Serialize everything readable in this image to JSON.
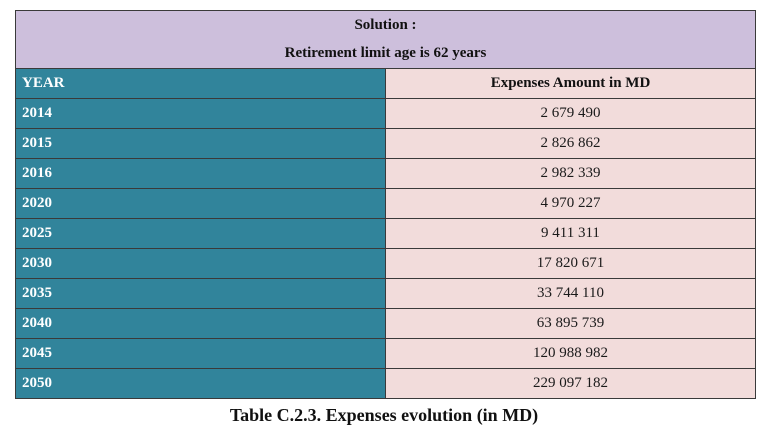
{
  "header": {
    "line1": "Solution :",
    "line2": "Retirement limit age is 62 years"
  },
  "columns": {
    "year": "YEAR",
    "amount": "Expenses Amount in MD"
  },
  "rows": [
    {
      "year": "2014",
      "amount": "2 679 490"
    },
    {
      "year": "2015",
      "amount": "2 826 862"
    },
    {
      "year": "2016",
      "amount": "2 982 339"
    },
    {
      "year": "2020",
      "amount": "4 970 227"
    },
    {
      "year": "2025",
      "amount": "9 411 311"
    },
    {
      "year": "2030",
      "amount": "17 820 671"
    },
    {
      "year": "2035",
      "amount": "33 744 110"
    },
    {
      "year": "2040",
      "amount": "63 895 739"
    },
    {
      "year": "2045",
      "amount": "120 988 982"
    },
    {
      "year": "2050",
      "amount": "229 097 182"
    }
  ],
  "caption": "Table C.2.3. Expenses evolution (in MD)",
  "colors": {
    "header_bg": "#cdbfdc",
    "year_bg": "#31849b",
    "amount_bg": "#f2dcdb"
  }
}
